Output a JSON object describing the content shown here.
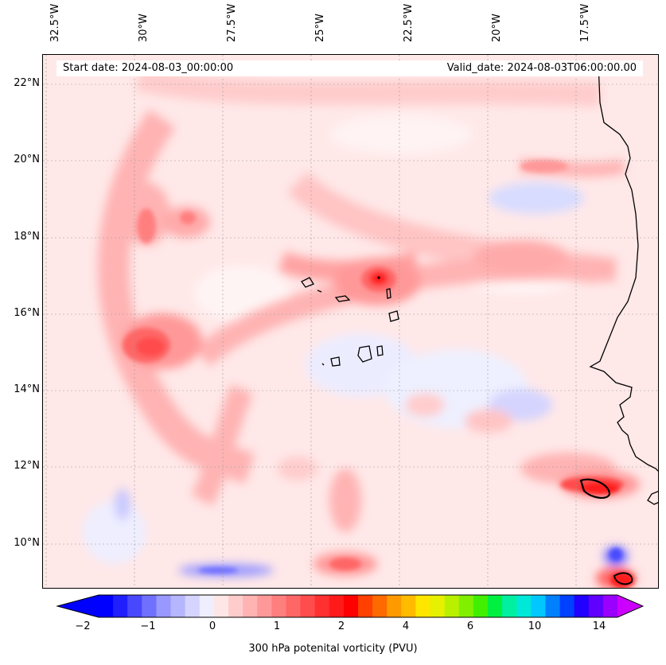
{
  "map": {
    "top_labels": [
      "32.5°W",
      "30°W",
      "27.5°W",
      "25°W",
      "22.5°W",
      "20°W",
      "17.5°W"
    ],
    "left_labels": [
      "22°N",
      "20°N",
      "18°N",
      "16°N",
      "14°N",
      "12°N",
      "10°N"
    ],
    "start_date": "Start date: 2024-08-03_00:00:00",
    "valid_date": "Valid_date: 2024-08-03T06:00:00.00",
    "extent": {
      "lon": [
        -32.5,
        -15.0
      ],
      "lat": [
        8.8,
        22.8
      ]
    }
  },
  "colorbar": {
    "tick_labels": [
      "−2",
      "−1",
      "0",
      "1",
      "2",
      "4",
      "6",
      "10",
      "14"
    ],
    "label": "300 hPa potenital vorticity (PVU)",
    "colors": [
      "#0000ff",
      "#2020ff",
      "#4848ff",
      "#7070ff",
      "#9898ff",
      "#b6b6ff",
      "#d4d4ff",
      "#eeeeff",
      "#ffe6e6",
      "#ffcccc",
      "#ffb3b3",
      "#ff9999",
      "#ff7f7f",
      "#ff6666",
      "#ff4c4c",
      "#ff3030",
      "#ff1a1a",
      "#ff0000",
      "#ff4000",
      "#ff6a00",
      "#ff9900",
      "#ffbb00",
      "#ffe600",
      "#e6f000",
      "#b8f000",
      "#80f000",
      "#40f000",
      "#00f040",
      "#00f0a0",
      "#00e8d8",
      "#00c8ff",
      "#0080ff",
      "#0040ff",
      "#2000ff",
      "#6000ff",
      "#9a00ff"
    ],
    "extend_low": "#0000ff",
    "extend_high": "#cc00ff"
  }
}
